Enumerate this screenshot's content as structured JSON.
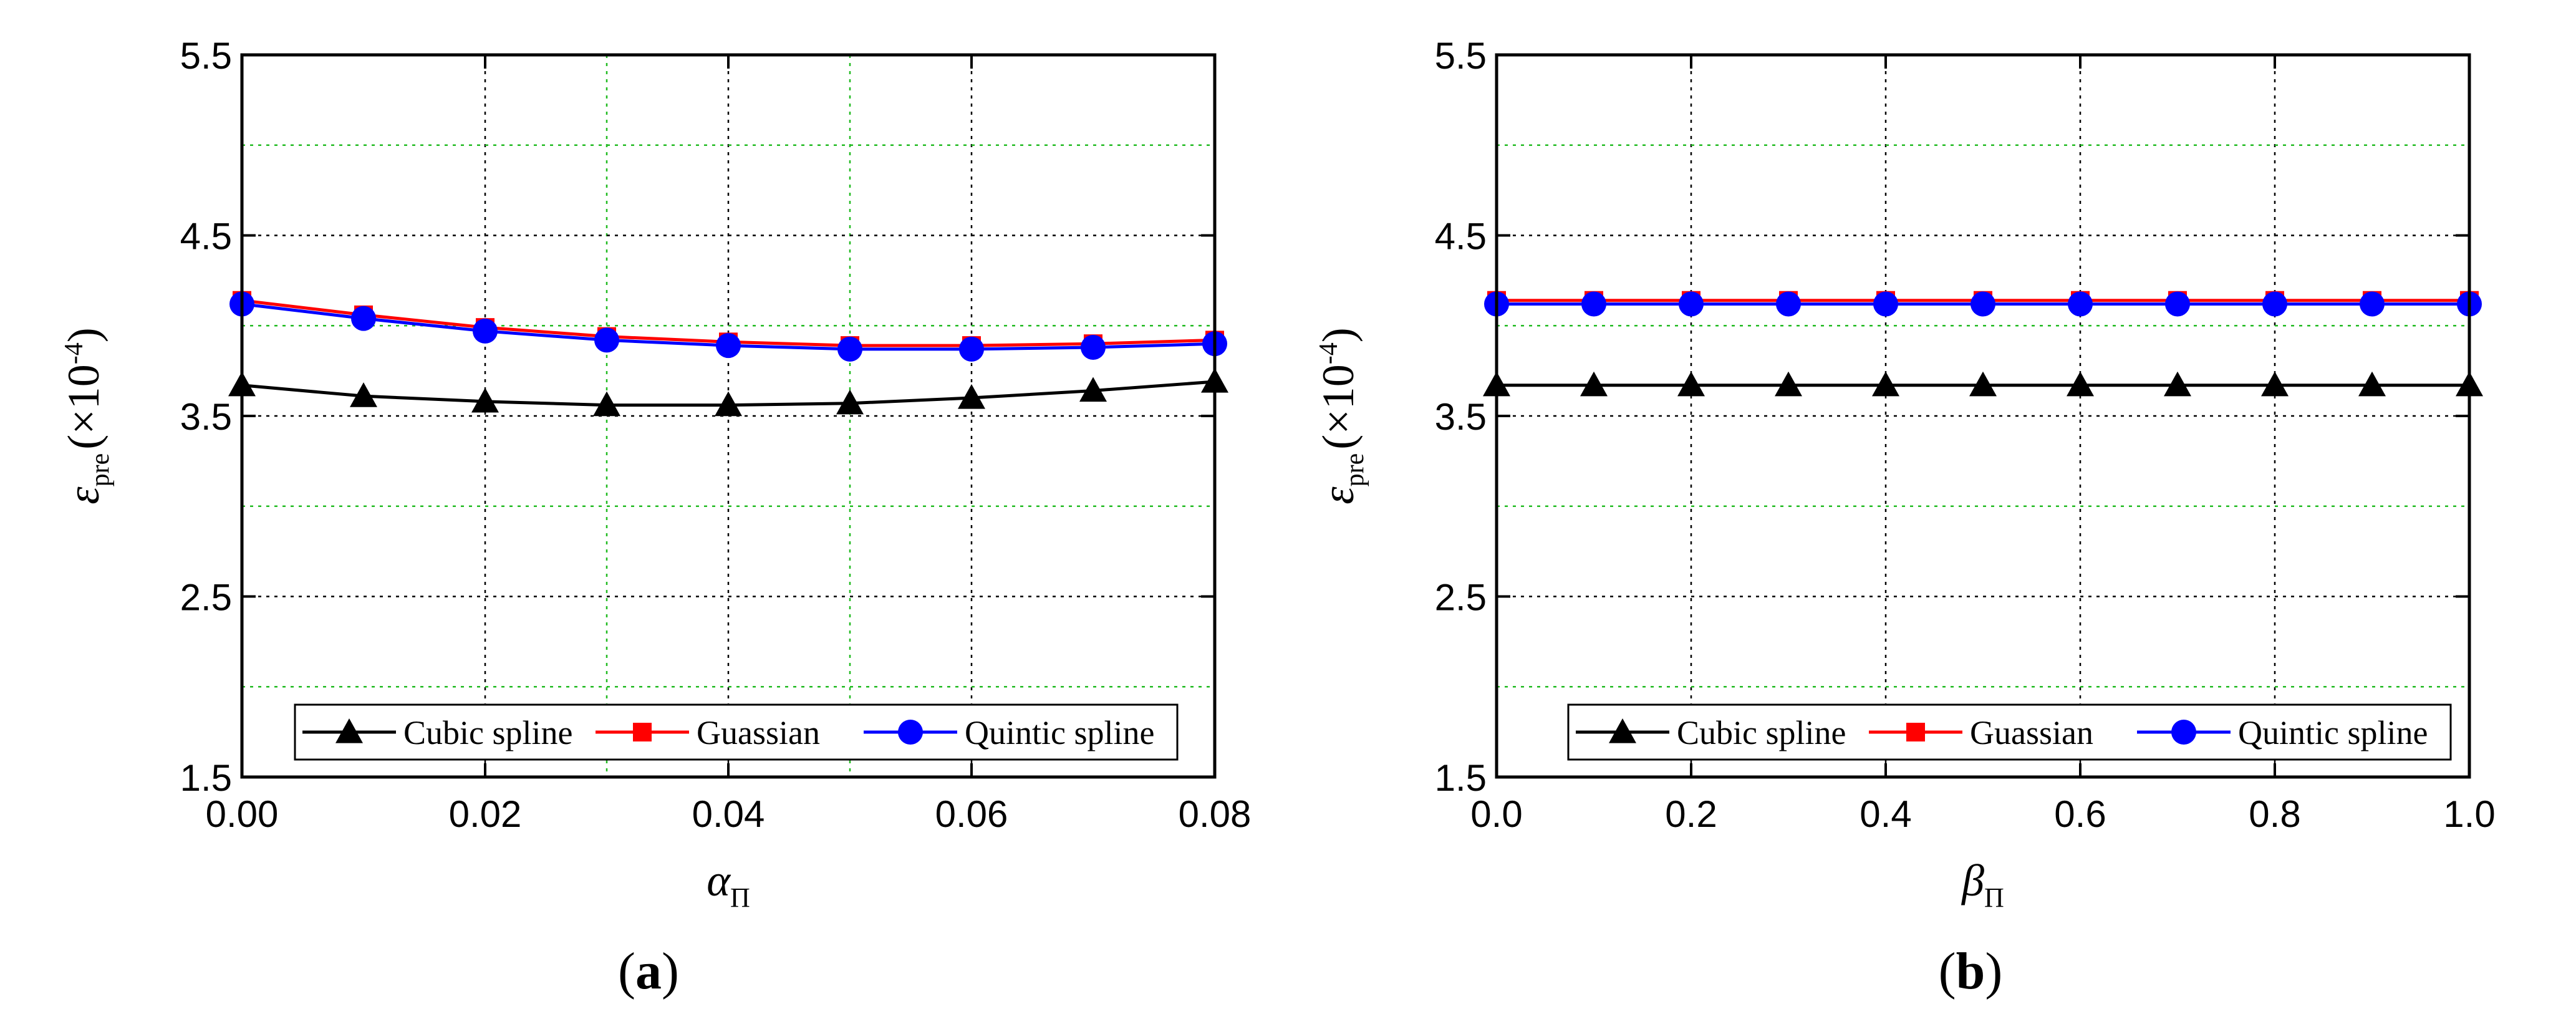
{
  "chart_data": [
    {
      "type": "line",
      "panel": "a",
      "caption_open": "(",
      "caption_letter": "a",
      "caption_close": ")",
      "xlabel": "α",
      "xlabel_sub": "Π",
      "ylabel": "ε",
      "ylabel_sub": "pre",
      "ylabel_unit": "(×10",
      "ylabel_exp": "-4",
      "ylabel_close": ")",
      "xlim": [
        0,
        0.08
      ],
      "ylim": [
        1.5,
        5.5
      ],
      "xticks": [
        "0.00",
        "0.02",
        "0.04",
        "0.06",
        "0.08"
      ],
      "yticks": [
        "1.5",
        "2.5",
        "3.5",
        "4.5",
        "5.5"
      ],
      "x": [
        0.0,
        0.01,
        0.02,
        0.03,
        0.04,
        0.05,
        0.06,
        0.07,
        0.08
      ],
      "series": [
        {
          "name": "Cubic spline",
          "color": "#000000",
          "marker": "triangle",
          "values": [
            3.67,
            3.61,
            3.58,
            3.56,
            3.56,
            3.57,
            3.6,
            3.64,
            3.69
          ]
        },
        {
          "name": "Guassian",
          "color": "#ff0000",
          "marker": "square",
          "values": [
            4.14,
            4.06,
            3.99,
            3.94,
            3.91,
            3.89,
            3.89,
            3.9,
            3.92
          ]
        },
        {
          "name": "Quintic spline",
          "color": "#0000ff",
          "marker": "circle",
          "values": [
            4.12,
            4.04,
            3.97,
            3.92,
            3.89,
            3.87,
            3.87,
            3.88,
            3.9
          ]
        }
      ]
    },
    {
      "type": "line",
      "panel": "b",
      "caption_open": "(",
      "caption_letter": "b",
      "caption_close": ")",
      "xlabel": "β",
      "xlabel_sub": "Π",
      "ylabel": "ε",
      "ylabel_sub": "pre",
      "ylabel_unit": "(×10",
      "ylabel_exp": "-4",
      "ylabel_close": ")",
      "xlim": [
        0,
        1.0
      ],
      "ylim": [
        1.5,
        5.5
      ],
      "xticks": [
        "0.0",
        "0.2",
        "0.4",
        "0.6",
        "0.8",
        "1.0"
      ],
      "yticks": [
        "1.5",
        "2.5",
        "3.5",
        "4.5",
        "5.5"
      ],
      "x": [
        0.0,
        0.1,
        0.2,
        0.3,
        0.4,
        0.5,
        0.6,
        0.7,
        0.8,
        0.9,
        1.0
      ],
      "series": [
        {
          "name": "Cubic spline",
          "color": "#000000",
          "marker": "triangle",
          "values": [
            3.67,
            3.67,
            3.67,
            3.67,
            3.67,
            3.67,
            3.67,
            3.67,
            3.67,
            3.67,
            3.67
          ]
        },
        {
          "name": "Guassian",
          "color": "#ff0000",
          "marker": "square",
          "values": [
            4.14,
            4.14,
            4.14,
            4.14,
            4.14,
            4.14,
            4.14,
            4.14,
            4.14,
            4.14,
            4.14
          ]
        },
        {
          "name": "Quintic spline",
          "color": "#0000ff",
          "marker": "circle",
          "values": [
            4.12,
            4.12,
            4.12,
            4.12,
            4.12,
            4.12,
            4.12,
            4.12,
            4.12,
            4.12,
            4.12
          ]
        }
      ]
    }
  ]
}
